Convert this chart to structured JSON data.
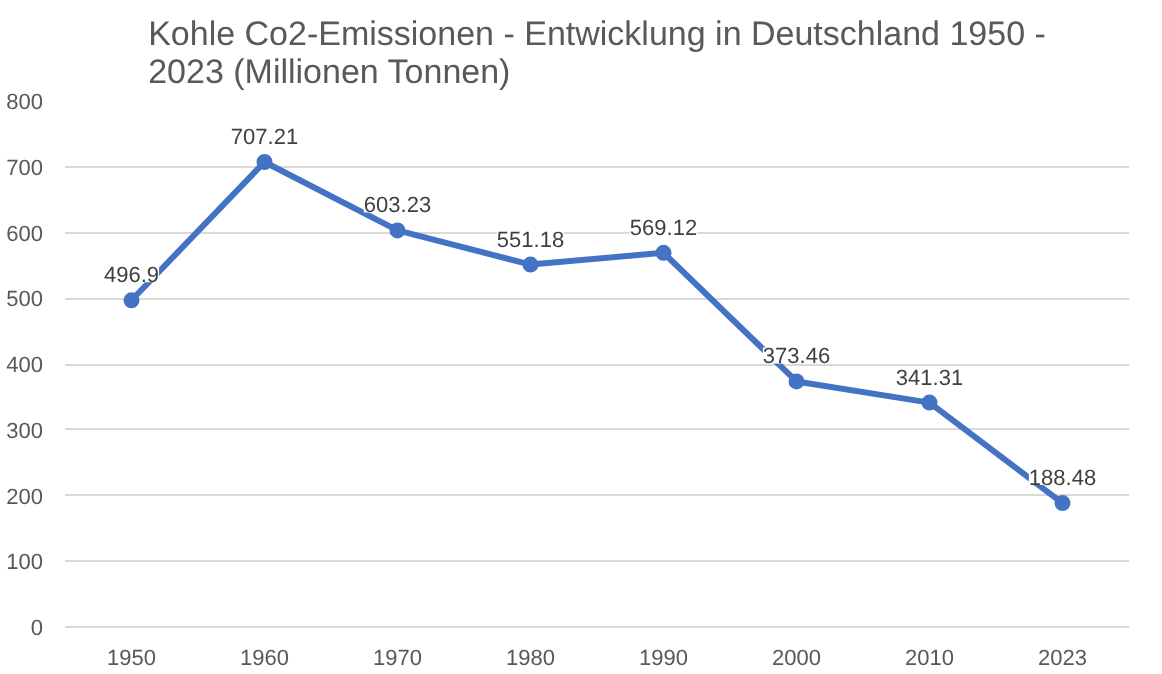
{
  "chart_data": {
    "type": "line",
    "title": "Kohle Co2-Emissionen - Entwicklung in Deutschland 1950 - 2023 (Millionen Tonnen)",
    "categories": [
      "1950",
      "1960",
      "1970",
      "1980",
      "1990",
      "2000",
      "2010",
      "2023"
    ],
    "series": [
      {
        "color": "#4472c4",
        "values": [
          496.9,
          707.21,
          603.23,
          551.18,
          569.12,
          373.46,
          341.31,
          188.48
        ]
      }
    ],
    "ylim": [
      0,
      800
    ],
    "yticks": [
      0,
      100,
      200,
      300,
      400,
      500,
      600,
      700,
      800
    ],
    "grid": "y",
    "marker": "circle",
    "line_style": "solid",
    "data_labels": true
  }
}
